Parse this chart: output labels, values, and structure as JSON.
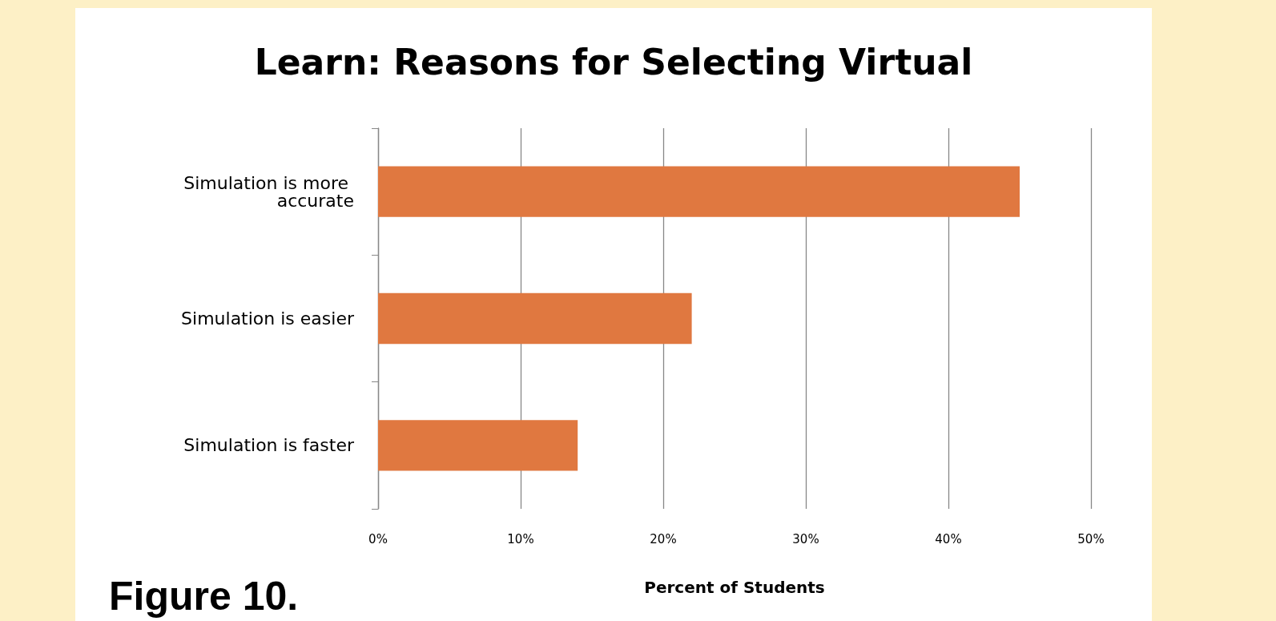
{
  "chart_data": {
    "type": "bar",
    "orientation": "horizontal",
    "title": "Learn: Reasons for Selecting Virtual",
    "xlabel": "Percent of Students",
    "categories": [
      "Simulation is more accurate",
      "Simulation is easier",
      "Simulation is faster"
    ],
    "values": [
      45,
      22,
      14
    ],
    "color": "#e07840",
    "xlim": [
      0,
      50
    ],
    "xticks": [
      {
        "value": 0,
        "label": "0%"
      },
      {
        "value": 10,
        "label": "10%"
      },
      {
        "value": 20,
        "label": "20%"
      },
      {
        "value": 30,
        "label": "30%"
      },
      {
        "value": 40,
        "label": "40%"
      },
      {
        "value": 50,
        "label": "50%"
      }
    ],
    "grid": "x",
    "annotations": [
      "Figure 10."
    ]
  }
}
